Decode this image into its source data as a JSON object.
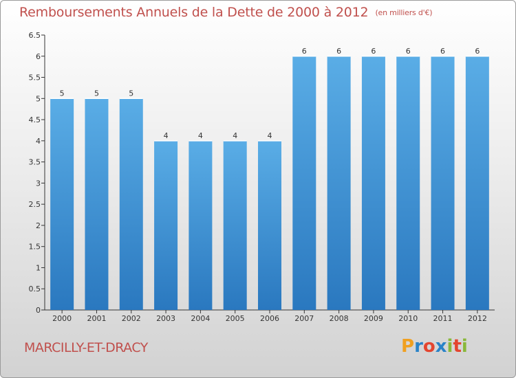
{
  "title": "Remboursements Annuels de la Dette de 2000 à 2012",
  "unit": "(en milliers d'€)",
  "commune": "MARCILLY-ET-DRACY",
  "brand": "Proxiti",
  "colors": {
    "bar_top": "#5aade6",
    "bar_bottom": "#2a78bf",
    "title": "#c0504d"
  },
  "chart_data": {
    "type": "bar",
    "categories": [
      "2000",
      "2001",
      "2002",
      "2003",
      "2004",
      "2005",
      "2006",
      "2007",
      "2008",
      "2009",
      "2010",
      "2011",
      "2012"
    ],
    "values": [
      5,
      5,
      5,
      4,
      4,
      4,
      4,
      6,
      6,
      6,
      6,
      6,
      6
    ],
    "data_labels": [
      "5",
      "5",
      "5",
      "4",
      "4",
      "4",
      "4",
      "6",
      "6",
      "6",
      "6",
      "6",
      "6"
    ],
    "title": "Remboursements Annuels de la Dette de 2000 à 2012",
    "ylim": [
      0,
      6.5
    ],
    "yticks": [
      0,
      0.5,
      1,
      1.5,
      2,
      2.5,
      3,
      3.5,
      4,
      4.5,
      5,
      5.5,
      6,
      6.5
    ],
    "ytick_labels": [
      "0",
      "0.5",
      "1",
      "1.5",
      "2",
      "2.5",
      "3",
      "3.5",
      "4",
      "4.5",
      "5",
      "5.5",
      "6",
      "6.5"
    ],
    "grid": false
  }
}
